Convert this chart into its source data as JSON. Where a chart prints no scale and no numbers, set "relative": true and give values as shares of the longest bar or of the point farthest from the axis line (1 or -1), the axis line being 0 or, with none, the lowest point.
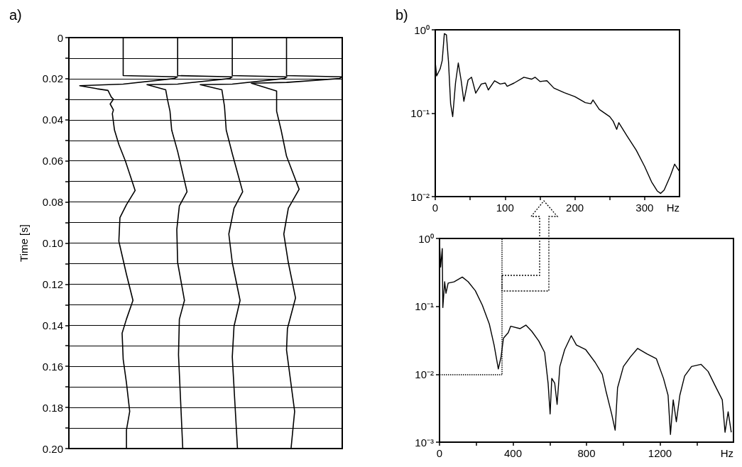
{
  "chart_data": [
    {
      "type": "line",
      "title": "a)",
      "ylabel": "Time [s]",
      "relative": true,
      "orientation": "horizontal",
      "ylim": [
        0.2,
        0
      ],
      "yticks": [
        0,
        {
          "value": 0.01,
          "label": null
        },
        0.02,
        {
          "value": 0.03,
          "label": null
        },
        0.04,
        {
          "value": 0.05,
          "label": null
        },
        0.06,
        {
          "value": 0.07,
          "label": null
        },
        0.08,
        {
          "value": 0.09,
          "label": null
        },
        {
          "value": 0.1,
          "label": "0.10"
        },
        {
          "value": 0.11,
          "label": null
        },
        0.12,
        {
          "value": 0.13,
          "label": null
        },
        0.14,
        {
          "value": 0.15,
          "label": null
        },
        0.16,
        {
          "value": 0.17,
          "label": null
        },
        0.18,
        {
          "value": 0.19,
          "label": null
        },
        {
          "value": 0.2,
          "label": "0.20"
        }
      ],
      "grid": "y",
      "tick_labels": "y",
      "marker": "none",
      "line_style": "solid",
      "series": [
        {
          "color": "#000000",
          "x": [
            0,
            0.0185,
            0.0191,
            0.0199,
            0.0226,
            0.0234,
            0.0249,
            0.0257,
            0.0289,
            0.03,
            0.0323,
            0.0352,
            0.037,
            0.045,
            0.052,
            0.06,
            0.0744,
            0.0813,
            0.0876,
            0.0991,
            0.1037,
            0.1152,
            0.1279,
            0.137,
            0.1439,
            0.1566,
            0.168,
            0.1819,
            0.191,
            0.2
          ],
          "values": [
            0.5,
            0.5,
            1,
            0.97,
            0.5,
            0.1,
            0.26,
            0.36,
            0.39,
            0.41,
            0.38,
            0.41,
            0.4,
            0.42,
            0.46,
            0.52,
            0.61,
            0.53,
            0.47,
            0.46,
            0.48,
            0.53,
            0.59,
            0.53,
            0.49,
            0.5,
            0.53,
            0.56,
            0.53,
            0.53
          ]
        }
      ]
    },
    {
      "type": "line",
      "relative": true,
      "orientation": "horizontal",
      "ylim": [
        0.2,
        0
      ],
      "tick_labels": false,
      "marker": "none",
      "line_style": "solid",
      "series": [
        {
          "color": "#000000",
          "x": [
            0,
            0.0185,
            0.0191,
            0.0199,
            0.0226,
            0.0229,
            0.0254,
            0.03,
            0.0358,
            0.045,
            0.0554,
            0.075,
            0.0819,
            0.0934,
            0.1095,
            0.1279,
            0.1371,
            0.1543,
            0.2
          ],
          "values": [
            0.36,
            0.36,
            1,
            0.97,
            0.36,
            0,
            0.22,
            0.24,
            0.27,
            0.29,
            0.36,
            0.47,
            0.38,
            0.35,
            0.36,
            0.44,
            0.38,
            0.37,
            0.42
          ]
        }
      ]
    },
    {
      "type": "line",
      "relative": true,
      "orientation": "horizontal",
      "ylim": [
        0.2,
        0
      ],
      "tick_labels": false,
      "marker": "none",
      "line_style": "solid",
      "series": [
        {
          "color": "#000000",
          "x": [
            0,
            0.0185,
            0.0191,
            0.0199,
            0.0226,
            0.0229,
            0.0254,
            0.0335,
            0.045,
            0.0565,
            0.075,
            0.083,
            0.0956,
            0.1095,
            0.1279,
            0.1405,
            0.1554,
            0.2
          ],
          "values": [
            0.37,
            0.37,
            1,
            0.97,
            0.37,
            0,
            0.25,
            0.28,
            0.3,
            0.37,
            0.49,
            0.39,
            0.33,
            0.37,
            0.46,
            0.39,
            0.37,
            0.43
          ]
        }
      ]
    },
    {
      "type": "line",
      "relative": true,
      "orientation": "horizontal",
      "ylim": [
        0.2,
        0
      ],
      "tick_labels": false,
      "marker": "none",
      "line_style": "solid",
      "series": [
        {
          "color": "#000000",
          "x": [
            0,
            0.0185,
            0.0191,
            0.0199,
            0.0218,
            0.0222,
            0.026,
            0.0358,
            0.045,
            0.0577,
            0.0738,
            0.083,
            0.0956,
            0.1095,
            0.1267,
            0.1416,
            0.152,
            0.1819,
            0.2
          ],
          "values": [
            0.39,
            0.39,
            1,
            0.98,
            0.39,
            0,
            0.28,
            0.28,
            0.33,
            0.39,
            0.53,
            0.41,
            0.36,
            0.41,
            0.49,
            0.4,
            0.39,
            0.48,
            0.44
          ]
        }
      ]
    },
    {
      "type": "line",
      "title": "b)",
      "xlabel": "Hz",
      "log": "y",
      "xlim": [
        0,
        350
      ],
      "xticks": [
        0,
        {
          "value": 50,
          "label": null
        },
        100,
        {
          "value": 150,
          "label": null
        },
        200,
        {
          "value": 250,
          "label": null
        },
        300
      ],
      "ylim": [
        0.01,
        1
      ],
      "yticks": [
        {
          "value": 1,
          "label": "10⁰"
        },
        {
          "value": 0.1,
          "label": "10⁻¹"
        },
        {
          "value": 0.01,
          "label": "10⁻²"
        }
      ],
      "marker": "none",
      "line_style": "solid",
      "series": [
        {
          "color": "#000000",
          "x": [
            0,
            2,
            7,
            10,
            13,
            16,
            19,
            22,
            25,
            29,
            33,
            37,
            41,
            47,
            52,
            58,
            66,
            72,
            76,
            85,
            93,
            100,
            103,
            113,
            127,
            138,
            143,
            150,
            160,
            170,
            185,
            200,
            215,
            223,
            226,
            235,
            250,
            255,
            260,
            263,
            275,
            288,
            300,
            310,
            318,
            323,
            328,
            337,
            343,
            350
          ],
          "values": [
            0.41,
            0.28,
            0.34,
            0.43,
            0.9,
            0.87,
            0.41,
            0.13,
            0.091,
            0.23,
            0.4,
            0.25,
            0.139,
            0.25,
            0.27,
            0.174,
            0.224,
            0.23,
            0.19,
            0.245,
            0.224,
            0.23,
            0.21,
            0.23,
            0.27,
            0.256,
            0.27,
            0.24,
            0.245,
            0.2,
            0.176,
            0.158,
            0.134,
            0.13,
            0.144,
            0.111,
            0.091,
            0.08,
            0.064,
            0.077,
            0.053,
            0.036,
            0.023,
            0.015,
            0.0117,
            0.0109,
            0.012,
            0.0178,
            0.0245,
            0.02
          ]
        }
      ]
    },
    {
      "type": "line",
      "xlabel": "Hz",
      "log": "y",
      "xlim": [
        0,
        1600
      ],
      "xticks": [
        0,
        {
          "value": 200,
          "label": null
        },
        400,
        {
          "value": 600,
          "label": null
        },
        800,
        {
          "value": 1000,
          "label": null
        },
        1200,
        {
          "value": 1400,
          "label": null
        }
      ],
      "ylim": [
        0.001,
        1
      ],
      "yticks": [
        {
          "value": 1,
          "label": "10⁰"
        },
        {
          "value": 0.1,
          "label": "10⁻¹"
        },
        {
          "value": 0.01,
          "label": "10⁻²"
        },
        {
          "value": 0.001,
          "label": "10⁻³"
        }
      ],
      "marker": "none",
      "line_style": "solid",
      "ref_lines": [
        {
          "axis": "y",
          "value": 0.01,
          "color": "#000000",
          "line_style": "dotted"
        },
        {
          "axis": "x",
          "value": 340,
          "color": "#000000",
          "line_style": "dotted"
        }
      ],
      "series": [
        {
          "color": "#000000",
          "x": [
            0,
            6,
            15,
            18,
            28,
            35,
            47,
            79,
            124,
            156,
            195,
            233,
            271,
            297,
            320,
            335,
            348,
            374,
            387,
            438,
            470,
            502,
            540,
            572,
            591,
            602,
            611,
            627,
            640,
            655,
            681,
            717,
            745,
            796,
            847,
            886,
            905,
            937,
            956,
            969,
            1001,
            1039,
            1078,
            1129,
            1180,
            1219,
            1244,
            1257,
            1272,
            1289,
            1308,
            1334,
            1372,
            1423,
            1462,
            1500,
            1539,
            1554,
            1571,
            1588
          ],
          "values": [
            0.91,
            0.38,
            0.71,
            0.096,
            0.23,
            0.156,
            0.22,
            0.23,
            0.27,
            0.23,
            0.17,
            0.104,
            0.055,
            0.027,
            0.012,
            0.018,
            0.034,
            0.041,
            0.051,
            0.047,
            0.053,
            0.043,
            0.031,
            0.021,
            0.0074,
            0.0026,
            0.0087,
            0.0074,
            0.0036,
            0.013,
            0.023,
            0.037,
            0.027,
            0.023,
            0.015,
            0.01,
            0.0058,
            0.0026,
            0.0015,
            0.0063,
            0.013,
            0.018,
            0.024,
            0.02,
            0.017,
            0.0087,
            0.0049,
            0.0013,
            0.0042,
            0.002,
            0.0049,
            0.0094,
            0.013,
            0.014,
            0.011,
            0.0068,
            0.0042,
            0.0014,
            0.0028,
            0.0014
          ]
        }
      ]
    }
  ]
}
